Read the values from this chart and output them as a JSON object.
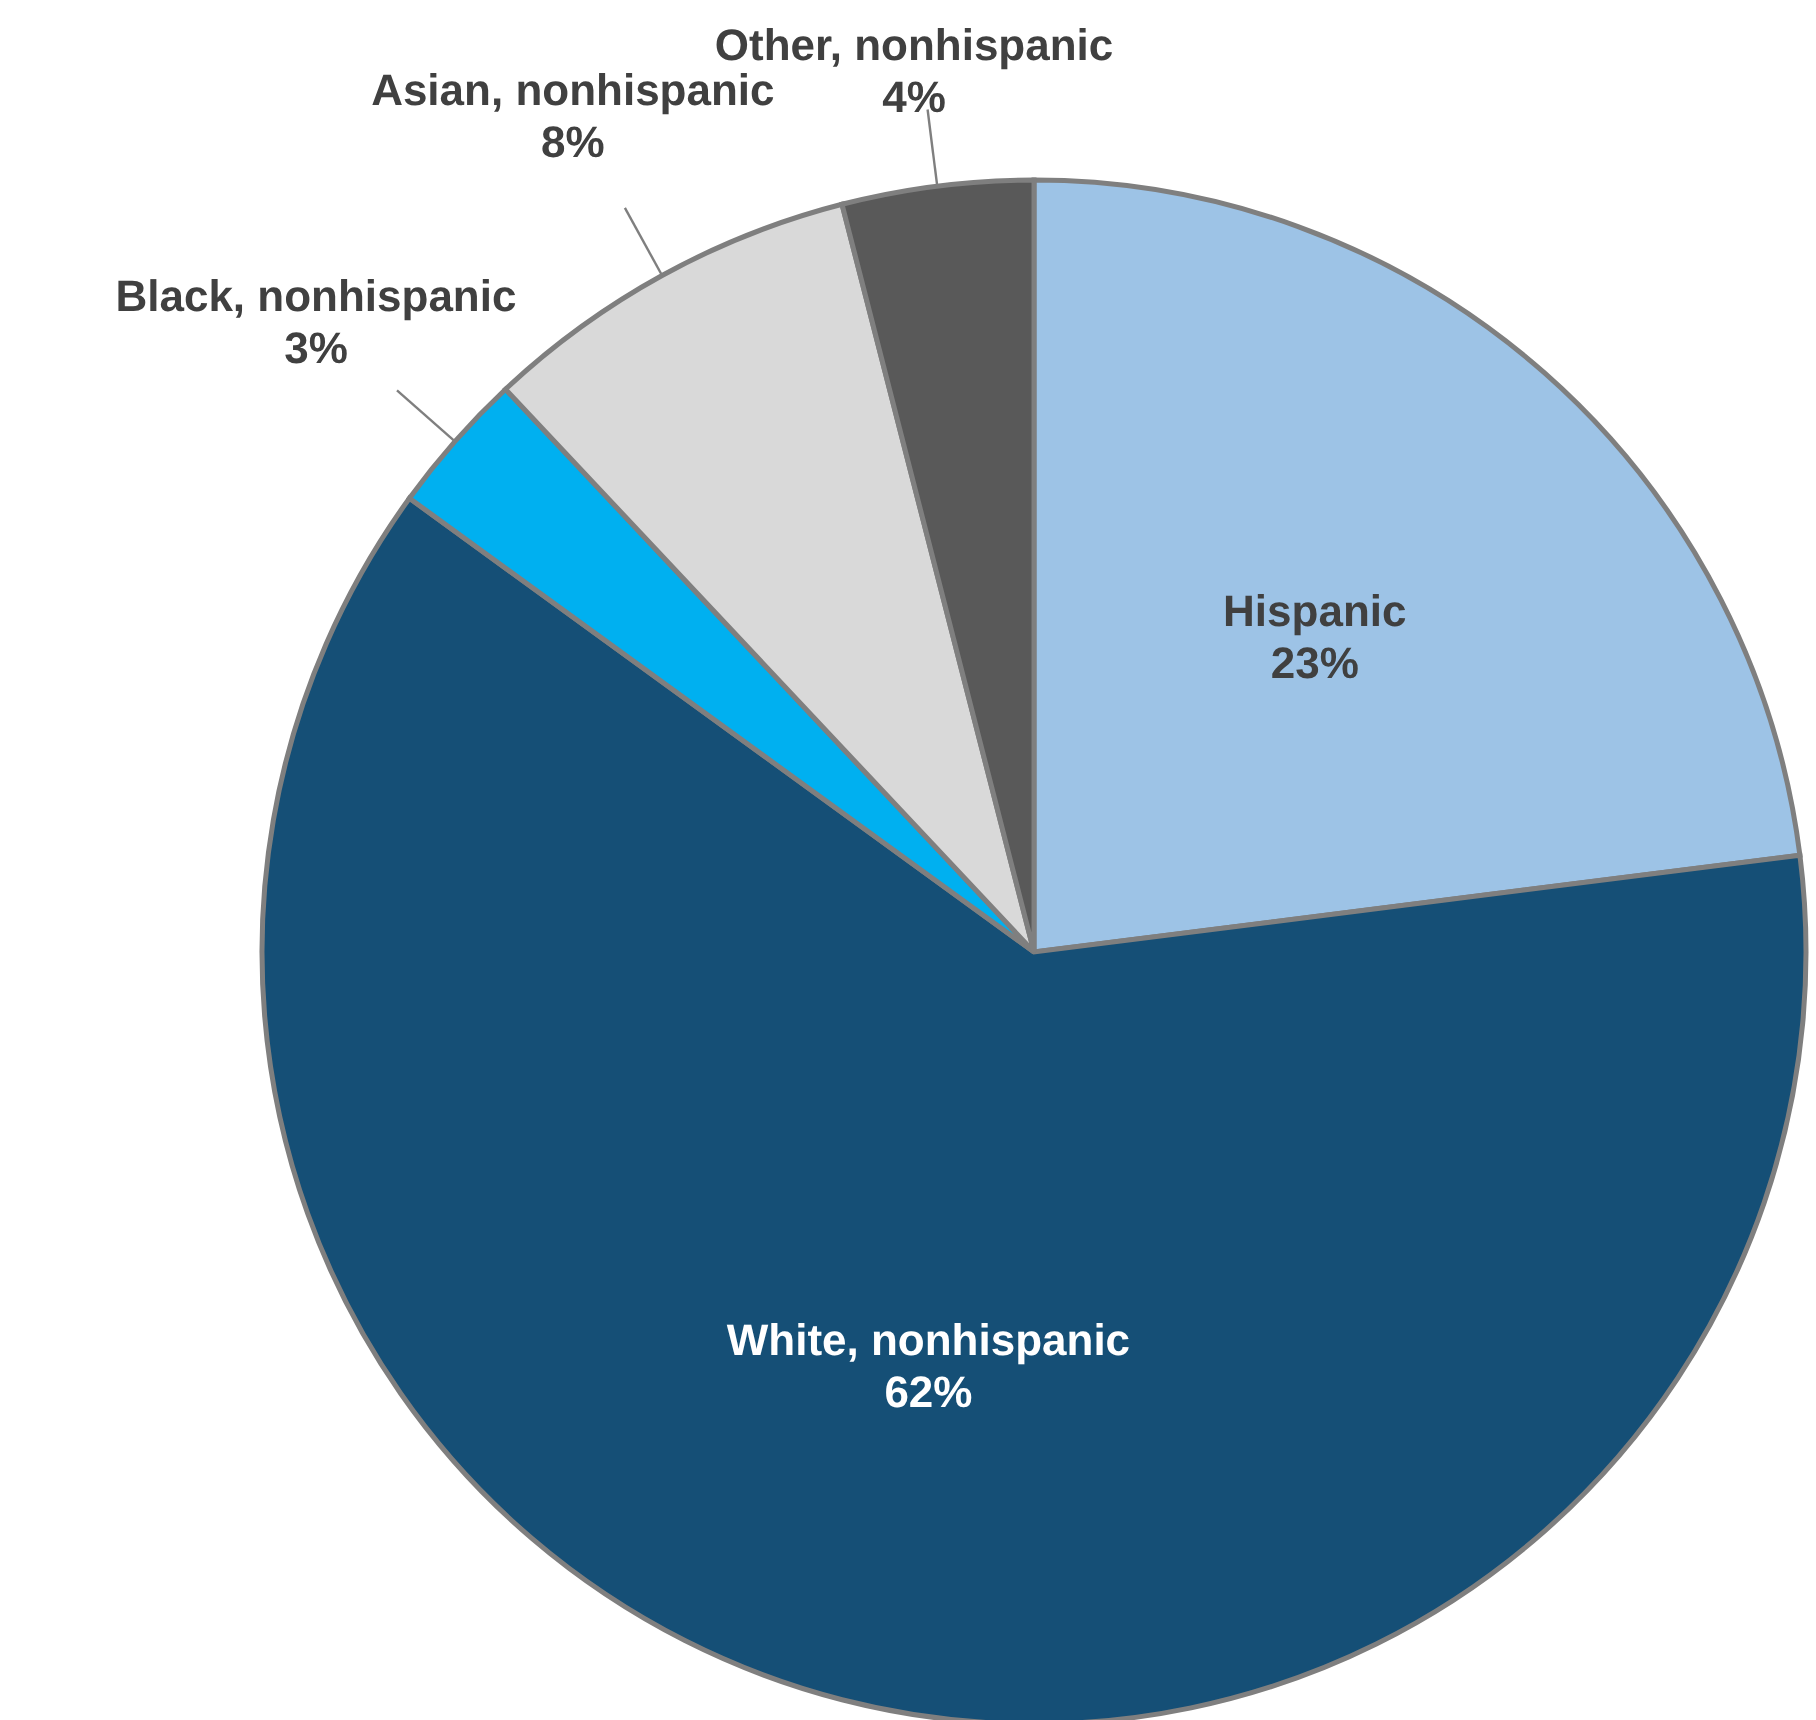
{
  "chart_data": {
    "type": "pie",
    "categories": [
      "Hispanic",
      "White, nonhispanic",
      "Black, nonhispanic",
      "Asian, nonhispanic",
      "Other, nonhispanic"
    ],
    "values": [
      23,
      62,
      3,
      8,
      4
    ],
    "value_labels": [
      "23%",
      "62%",
      "3%",
      "8%",
      "4%"
    ],
    "colors": [
      "#9dc3e6",
      "#154f76",
      "#00b0f0",
      "#d9d9d9",
      "#595959"
    ]
  }
}
